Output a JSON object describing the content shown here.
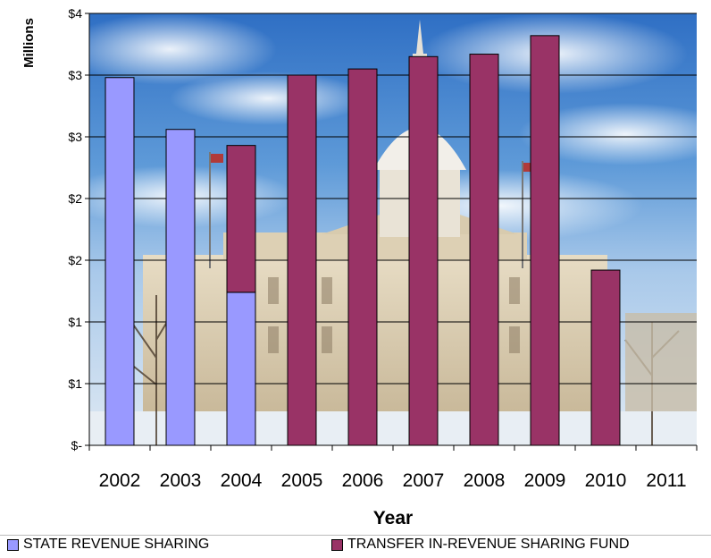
{
  "chart_data": {
    "type": "bar",
    "stacked": true,
    "xlabel": "Year",
    "ylabel": "Millions",
    "categories": [
      "2002",
      "2003",
      "2004",
      "2005",
      "2006",
      "2007",
      "2008",
      "2009",
      "2010",
      "2011"
    ],
    "y_tick_labels": [
      "$-",
      "$1",
      "$1",
      "$2",
      "$2",
      "$3",
      "$3",
      "$4"
    ],
    "ylim": [
      0,
      3.5
    ],
    "grid": true,
    "background": "photo of state capitol building dome under a blue sky with clouds",
    "legend_position": "bottom",
    "series": [
      {
        "name": "STATE REVENUE SHARING",
        "color": "#9999ff",
        "values": [
          2.98,
          2.56,
          1.24,
          0,
          0,
          0,
          0,
          0,
          0,
          0
        ]
      },
      {
        "name": "TRANSFER IN-REVENUE SHARING FUND",
        "color": "#993366",
        "values": [
          0,
          0,
          1.19,
          3.0,
          3.05,
          3.15,
          3.17,
          3.32,
          1.42,
          0
        ]
      }
    ]
  }
}
